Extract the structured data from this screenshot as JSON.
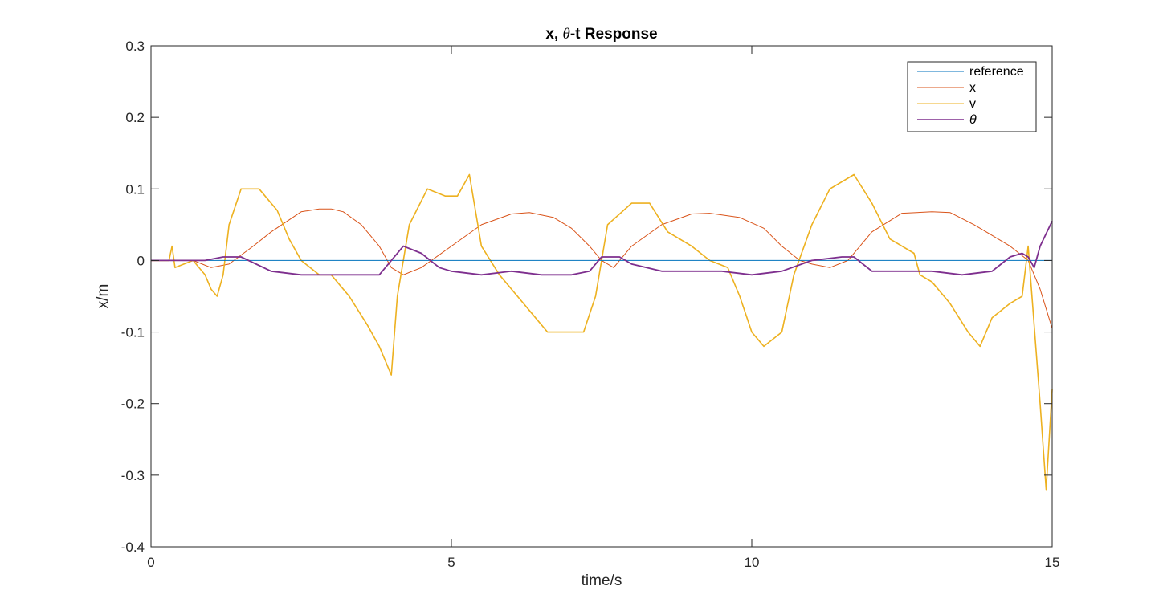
{
  "chart_data": {
    "type": "line",
    "title_parts": [
      "x, ",
      "θ",
      "-t Response"
    ],
    "xlabel": "time/s",
    "ylabel": "x/m",
    "xlim": [
      0,
      15
    ],
    "ylim": [
      -0.4,
      0.3
    ],
    "xticks": [
      0,
      5,
      10,
      15
    ],
    "xtick_labels": [
      "0",
      "5",
      "10",
      "15"
    ],
    "yticks": [
      -0.4,
      -0.3,
      -0.2,
      -0.1,
      0,
      0.1,
      0.2,
      0.3
    ],
    "ytick_labels": [
      "-0.4",
      "-0.3",
      "-0.2",
      "-0.1",
      "0",
      "0.1",
      "0.2",
      "0.3"
    ],
    "grid": false,
    "legend_position": "top-right",
    "series": [
      {
        "name": "reference",
        "color": "#0072BD",
        "x": [
          0,
          15
        ],
        "y": [
          0,
          0
        ]
      },
      {
        "name": "x",
        "color": "#D95319",
        "x": [
          0,
          0.3,
          0.7,
          1.0,
          1.3,
          1.7,
          2.0,
          2.5,
          2.8,
          3.0,
          3.2,
          3.5,
          3.8,
          4.0,
          4.2,
          4.5,
          5.0,
          5.5,
          6.0,
          6.3,
          6.7,
          7.0,
          7.3,
          7.5,
          7.7,
          8.0,
          8.5,
          9.0,
          9.3,
          9.8,
          10.2,
          10.5,
          10.8,
          11.0,
          11.3,
          11.6,
          12.0,
          12.5,
          13.0,
          13.3,
          13.7,
          14.0,
          14.3,
          14.6,
          14.8,
          15.0
        ],
        "y": [
          0,
          0,
          0,
          -0.01,
          -0.005,
          0.02,
          0.04,
          0.068,
          0.072,
          0.072,
          0.068,
          0.05,
          0.02,
          -0.01,
          -0.02,
          -0.01,
          0.02,
          0.05,
          0.065,
          0.067,
          0.06,
          0.045,
          0.02,
          0,
          -0.01,
          0.02,
          0.05,
          0.065,
          0.066,
          0.06,
          0.045,
          0.02,
          0,
          -0.005,
          -0.01,
          0,
          0.04,
          0.066,
          0.068,
          0.067,
          0.05,
          0.035,
          0.02,
          0,
          -0.04,
          -0.095
        ]
      },
      {
        "name": "v",
        "color": "#EDB120",
        "x": [
          0,
          0.3,
          0.35,
          0.4,
          0.7,
          0.9,
          1.0,
          1.1,
          1.2,
          1.3,
          1.5,
          1.8,
          2.1,
          2.3,
          2.5,
          2.8,
          3.0,
          3.3,
          3.6,
          3.8,
          4.0,
          4.1,
          4.3,
          4.6,
          4.9,
          5.1,
          5.3,
          5.5,
          5.8,
          6.0,
          6.3,
          6.6,
          6.9,
          7.2,
          7.4,
          7.6,
          8.0,
          8.3,
          8.6,
          9.0,
          9.3,
          9.6,
          9.8,
          10.0,
          10.2,
          10.5,
          10.7,
          11.0,
          11.3,
          11.7,
          12.0,
          12.3,
          12.5,
          12.7,
          12.8,
          13.0,
          13.3,
          13.6,
          13.8,
          14.0,
          14.3,
          14.5,
          14.6,
          14.8,
          14.9,
          15.0
        ],
        "y": [
          0,
          0,
          0.02,
          -0.01,
          0,
          -0.02,
          -0.04,
          -0.05,
          -0.02,
          0.05,
          0.1,
          0.1,
          0.07,
          0.03,
          0,
          -0.02,
          -0.02,
          -0.05,
          -0.09,
          -0.12,
          -0.16,
          -0.05,
          0.05,
          0.1,
          0.09,
          0.09,
          0.12,
          0.02,
          -0.02,
          -0.04,
          -0.07,
          -0.1,
          -0.1,
          -0.1,
          -0.05,
          0.05,
          0.08,
          0.08,
          0.04,
          0.02,
          0,
          -0.01,
          -0.05,
          -0.1,
          -0.12,
          -0.1,
          -0.02,
          0.05,
          0.1,
          0.12,
          0.08,
          0.03,
          0.02,
          0.01,
          -0.02,
          -0.03,
          -0.06,
          -0.1,
          -0.12,
          -0.08,
          -0.06,
          -0.05,
          0.02,
          -0.2,
          -0.32,
          -0.18
        ]
      },
      {
        "name": "θ",
        "color": "#7E2F8E",
        "x": [
          0,
          0.5,
          0.9,
          1.2,
          1.5,
          2.0,
          2.5,
          3.0,
          3.5,
          3.8,
          4.0,
          4.2,
          4.5,
          4.8,
          5.0,
          5.5,
          6.0,
          6.5,
          7.0,
          7.3,
          7.5,
          7.8,
          8.0,
          8.5,
          9.0,
          9.5,
          10.0,
          10.5,
          11.0,
          11.5,
          11.7,
          12.0,
          12.5,
          13.0,
          13.5,
          14.0,
          14.3,
          14.5,
          14.6,
          14.7,
          14.8,
          15.0
        ],
        "y": [
          0,
          0,
          0,
          0.005,
          0.005,
          -0.015,
          -0.02,
          -0.02,
          -0.02,
          -0.02,
          0,
          0.02,
          0.01,
          -0.01,
          -0.015,
          -0.02,
          -0.015,
          -0.02,
          -0.02,
          -0.015,
          0.005,
          0.005,
          -0.005,
          -0.015,
          -0.015,
          -0.015,
          -0.02,
          -0.015,
          0,
          0.005,
          0.005,
          -0.015,
          -0.015,
          -0.015,
          -0.02,
          -0.015,
          0.005,
          0.01,
          0.005,
          -0.01,
          0.02,
          0.055
        ]
      }
    ]
  }
}
